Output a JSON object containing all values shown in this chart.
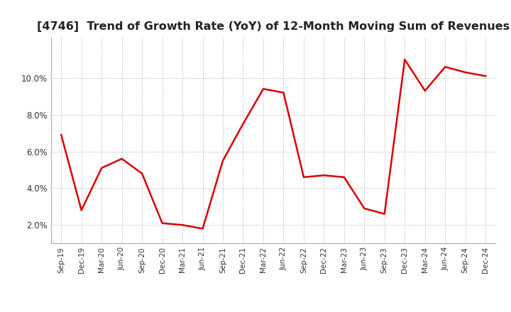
{
  "title": "[4746]  Trend of Growth Rate (YoY) of 12-Month Moving Sum of Revenues",
  "title_fontsize": 11.5,
  "line_color": "#dd0000",
  "background_color": "#ffffff",
  "grid_color": "#aaaaaa",
  "x_labels": [
    "Sep-19",
    "Dec-19",
    "Mar-20",
    "Jun-20",
    "Sep-20",
    "Dec-20",
    "Mar-21",
    "Jun-21",
    "Sep-21",
    "Dec-21",
    "Mar-22",
    "Jun-22",
    "Sep-22",
    "Dec-22",
    "Mar-23",
    "Jun-23",
    "Sep-23",
    "Dec-23",
    "Mar-24",
    "Jun-24",
    "Sep-24",
    "Dec-24"
  ],
  "y_values": [
    6.9,
    2.8,
    5.1,
    5.6,
    4.8,
    2.1,
    2.0,
    1.8,
    5.5,
    7.5,
    9.4,
    9.2,
    4.6,
    4.7,
    4.6,
    2.9,
    2.6,
    11.0,
    9.3,
    10.6,
    10.3,
    10.1
  ],
  "ylim": [
    1.0,
    12.2
  ],
  "yticks": [
    2.0,
    4.0,
    6.0,
    8.0,
    10.0
  ],
  "line_width": 1.8
}
